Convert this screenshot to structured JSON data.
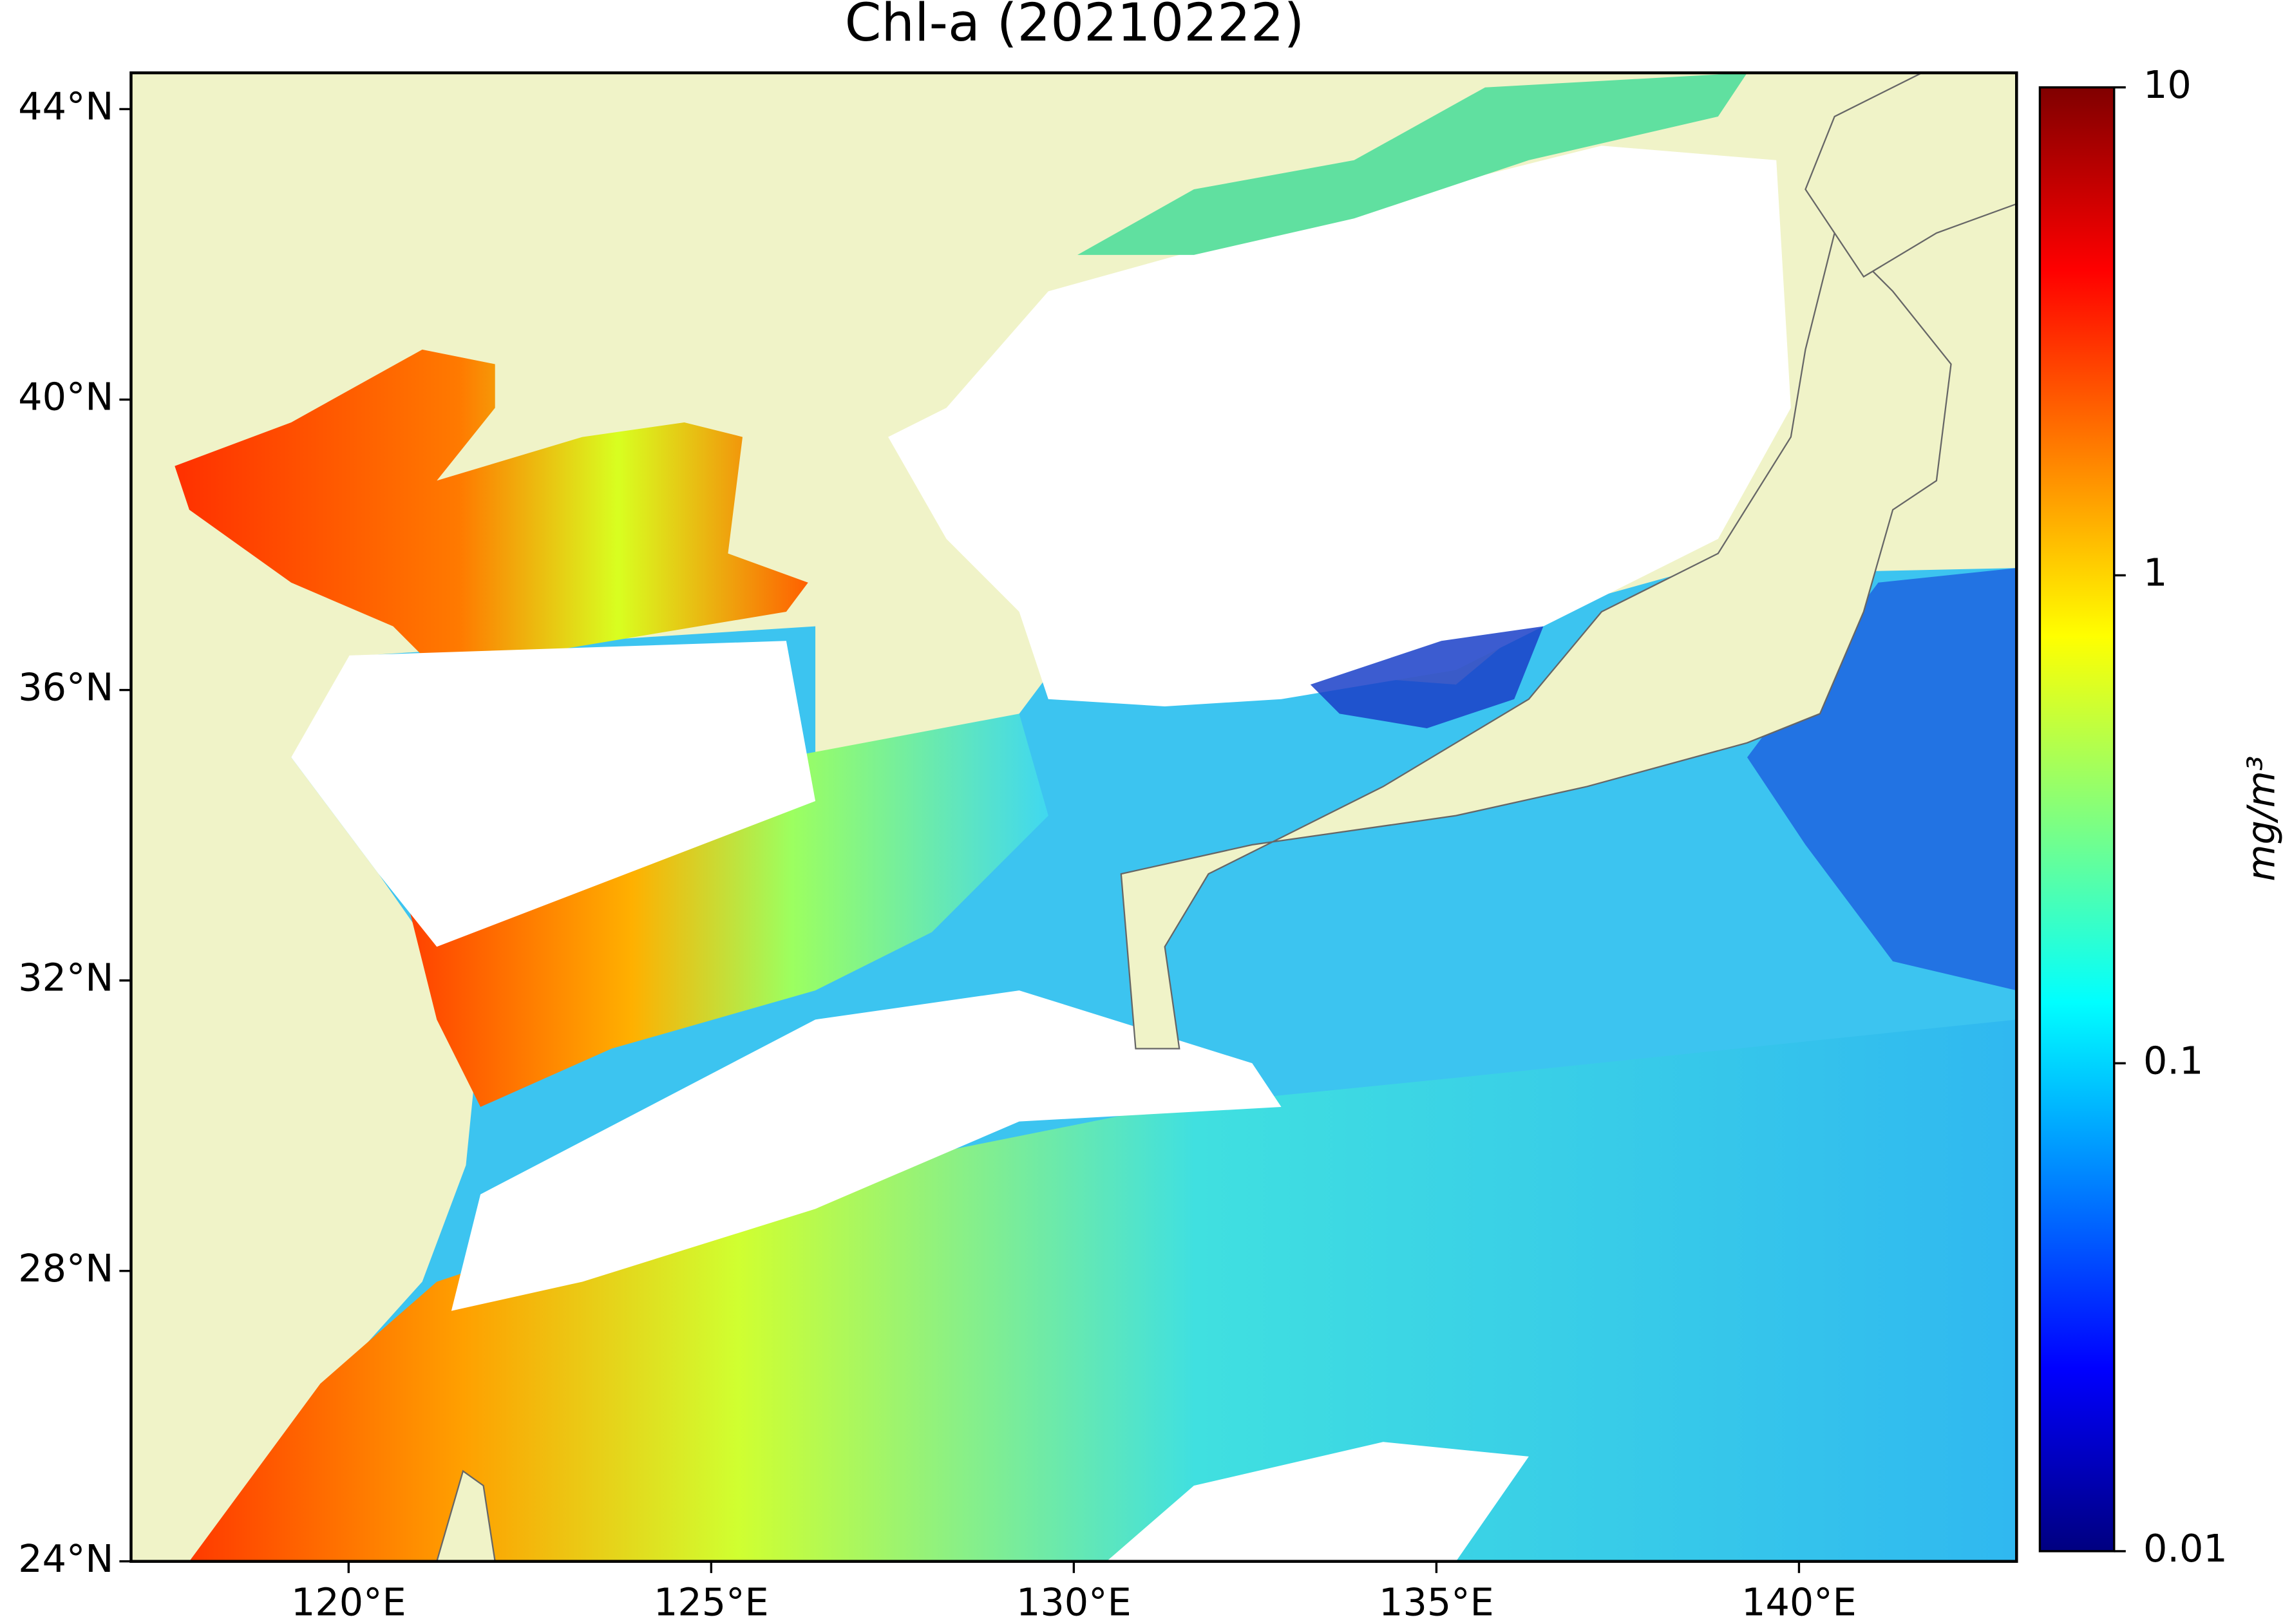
{
  "chart_data": {
    "type": "map",
    "title": "Chl-a (20210222)",
    "xlim": [
      117,
      143
    ],
    "ylim": [
      24,
      44.5
    ],
    "xticks": [
      {
        "value": 120,
        "label": "120°E"
      },
      {
        "value": 125,
        "label": "125°E"
      },
      {
        "value": 130,
        "label": "130°E"
      },
      {
        "value": 135,
        "label": "135°E"
      },
      {
        "value": 140,
        "label": "140°E"
      }
    ],
    "yticks": [
      {
        "value": 24,
        "label": "24°N"
      },
      {
        "value": 28,
        "label": "28°N"
      },
      {
        "value": 32,
        "label": "32°N"
      },
      {
        "value": 36,
        "label": "36°N"
      },
      {
        "value": 40,
        "label": "40°N"
      },
      {
        "value": 44,
        "label": "44°N"
      }
    ],
    "colorbar": {
      "label": "mg/m³",
      "scale": "log",
      "lim": [
        0.01,
        10
      ],
      "ticks": [
        0.01,
        0.1,
        1,
        10
      ],
      "colormap": "jet"
    }
  }
}
